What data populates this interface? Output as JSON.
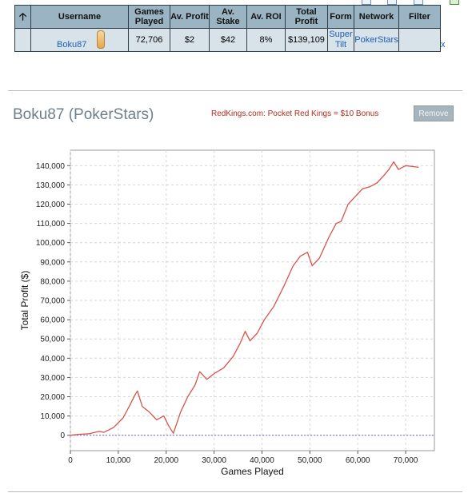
{
  "table": {
    "headers": {
      "username": "Username",
      "games_played": "Games Played",
      "av_profit": "Av. Profit",
      "av_stake": "Av. Stake",
      "av_roi": "Av. ROI",
      "total_profit": "Total Profit",
      "form": "Form",
      "network": "Network",
      "filter": "Filter"
    },
    "row": {
      "username": "Boku87",
      "games_played": "72,706",
      "av_profit": "$2",
      "av_stake": "$42",
      "av_roi": "8%",
      "total_profit": "$139,109",
      "form_line1": "Super",
      "form_line2": "Tilt",
      "network": "PokerStars",
      "filter": "",
      "close": "x"
    },
    "sort_icon": "up-arrow-icon"
  },
  "player_section": {
    "title": "Boku87 (PokerStars)",
    "promo_text": "RedKings.com: Pocket Red Kings = $10 Bonus",
    "remove_label": "Remove"
  },
  "chart_data": {
    "type": "line",
    "xlabel": "Games Played",
    "ylabel": "Total Profit ($)",
    "xlim": [
      0,
      76000
    ],
    "ylim": [
      -8000,
      148000
    ],
    "x_ticks": [
      0,
      10000,
      20000,
      30000,
      40000,
      50000,
      60000,
      70000
    ],
    "x_tick_labels": [
      "0",
      "10,000",
      "20,000",
      "30,000",
      "40,000",
      "50,000",
      "60,000",
      "70,000"
    ],
    "y_ticks": [
      0,
      10000,
      20000,
      30000,
      40000,
      50000,
      60000,
      70000,
      80000,
      90000,
      100000,
      110000,
      120000,
      130000,
      140000
    ],
    "y_tick_labels": [
      "0",
      "10,000",
      "20,000",
      "30,000",
      "40,000",
      "50,000",
      "60,000",
      "70,000",
      "80,000",
      "90,000",
      "100,000",
      "110,000",
      "120,000",
      "130,000",
      "140,000"
    ],
    "grid": true,
    "zero_line": true,
    "line_color": "#d9534a",
    "zero_line_color": "#6b6bd6",
    "series": [
      {
        "x": [
          0,
          2000,
          4000,
          6000,
          7000,
          9000,
          11000,
          12500,
          13500,
          14000,
          15000,
          16500,
          18000,
          19500,
          20500,
          21500,
          23000,
          24500,
          26000,
          27000,
          28500,
          30000,
          32000,
          34000,
          35500,
          36500,
          37500,
          39000,
          40500,
          42500,
          44500,
          46500,
          48000,
          49500,
          50500,
          52000,
          54000,
          55500,
          56500,
          58000,
          59500,
          61000,
          62500,
          64000,
          65500,
          66500,
          67500,
          68500,
          70000,
          72706
        ],
        "y": [
          0,
          500,
          800,
          2000,
          1500,
          4000,
          9000,
          16000,
          21000,
          23000,
          15000,
          12000,
          8000,
          10000,
          5000,
          1000,
          12000,
          20000,
          26000,
          33000,
          29000,
          32000,
          35000,
          41000,
          48000,
          54000,
          49000,
          53000,
          60000,
          67000,
          77000,
          88000,
          93000,
          95000,
          88000,
          92000,
          103000,
          110000,
          111000,
          120000,
          124000,
          128000,
          129000,
          131000,
          135000,
          138000,
          142000,
          138000,
          140000,
          139109
        ]
      }
    ]
  }
}
